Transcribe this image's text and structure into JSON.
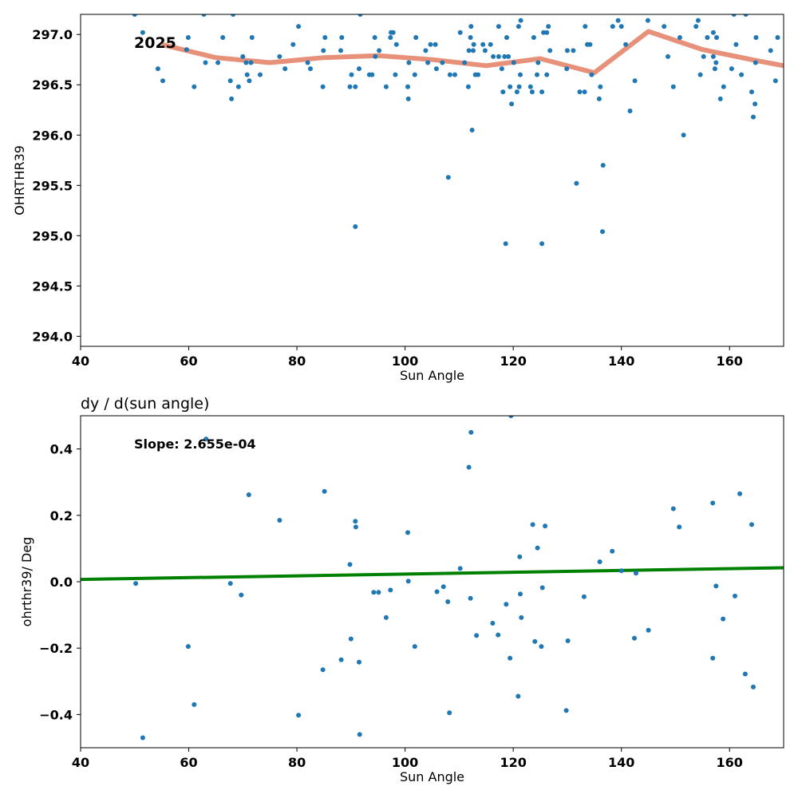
{
  "chart_data": [
    {
      "type": "scatter",
      "title": "",
      "xlabel": "Sun Angle",
      "ylabel": "OHRTHR39",
      "xlim": [
        40,
        170
      ],
      "ylim": [
        293.9,
        297.2
      ],
      "xticks": [
        40,
        60,
        80,
        100,
        120,
        140,
        160
      ],
      "yticks": [
        294.0,
        294.5,
        295.0,
        295.5,
        296.0,
        296.5,
        297.0
      ],
      "xtick_labels": [
        "40",
        "60",
        "80",
        "100",
        "120",
        "140",
        "160"
      ],
      "ytick_labels": [
        "294.0",
        "294.5",
        "295.0",
        "295.5",
        "296.0",
        "296.5",
        "297.0"
      ],
      "annotation": "2025",
      "grid": false,
      "colors": {
        "points": "#1f77b4",
        "trend": "#e8917a"
      },
      "series": [
        {
          "type": "scatter",
          "points": [
            [
              50,
              297.2
            ],
            [
              51.5,
              297.02
            ],
            [
              54.3,
              296.66
            ],
            [
              55.2,
              296.54
            ],
            [
              59.6,
              296.85
            ],
            [
              59.9,
              296.97
            ],
            [
              61,
              296.48
            ],
            [
              62.8,
              297.2
            ],
            [
              63.1,
              296.72
            ],
            [
              65.4,
              296.72
            ],
            [
              66.3,
              296.97
            ],
            [
              67.7,
              296.54
            ],
            [
              67.9,
              296.36
            ],
            [
              68.2,
              297.2
            ],
            [
              69.2,
              296.48
            ],
            [
              70,
              296.78
            ],
            [
              70.6,
              296.72
            ],
            [
              70.8,
              296.6
            ],
            [
              71.2,
              296.54
            ],
            [
              71.5,
              296.72
            ],
            [
              71.7,
              296.97
            ],
            [
              73.2,
              296.6
            ],
            [
              76.8,
              296.78
            ],
            [
              77.8,
              296.66
            ],
            [
              79.3,
              296.9
            ],
            [
              80.3,
              297.08
            ],
            [
              82,
              296.72
            ],
            [
              82.5,
              296.66
            ],
            [
              84.8,
              296.48
            ],
            [
              84.9,
              296.84
            ],
            [
              85.2,
              296.97
            ],
            [
              88.1,
              296.84
            ],
            [
              88.3,
              296.97
            ],
            [
              89.8,
              296.48
            ],
            [
              90.1,
              296.6
            ],
            [
              90.8,
              296.48
            ],
            [
              91.5,
              296.66
            ],
            [
              91.7,
              297.2
            ],
            [
              93.4,
              296.6
            ],
            [
              93.9,
              296.6
            ],
            [
              94.4,
              296.97
            ],
            [
              94.5,
              296.78
            ],
            [
              95.2,
              296.84
            ],
            [
              96.5,
              296.48
            ],
            [
              97.3,
              296.97
            ],
            [
              97.4,
              297.02
            ],
            [
              97.8,
              297.02
            ],
            [
              98.2,
              296.6
            ],
            [
              98.4,
              296.9
            ],
            [
              100.5,
              296.48
            ],
            [
              100.6,
              296.36
            ],
            [
              100.7,
              296.72
            ],
            [
              101.8,
              296.6
            ],
            [
              102,
              296.97
            ],
            [
              103.8,
              296.84
            ],
            [
              104.2,
              296.72
            ],
            [
              104.7,
              296.9
            ],
            [
              105.6,
              296.9
            ],
            [
              105.8,
              296.66
            ],
            [
              106.9,
              296.72
            ],
            [
              108.3,
              296.6
            ],
            [
              109.2,
              296.6
            ],
            [
              110.2,
              297.02
            ],
            [
              111,
              296.72
            ],
            [
              111.7,
              296.48
            ],
            [
              111.8,
              296.84
            ],
            [
              112.1,
              296.97
            ],
            [
              112.2,
              297.08
            ],
            [
              112.6,
              296.84
            ],
            [
              112.7,
              296.9
            ],
            [
              113,
              296.6
            ],
            [
              113.5,
              296.6
            ],
            [
              114.4,
              296.9
            ],
            [
              114.8,
              296.84
            ],
            [
              115.8,
              296.9
            ],
            [
              116.3,
              296.78
            ],
            [
              117.3,
              296.78
            ],
            [
              117.3,
              297.08
            ],
            [
              117.9,
              296.66
            ],
            [
              118.1,
              296.43
            ],
            [
              118.4,
              296.78
            ],
            [
              118.8,
              296.97
            ],
            [
              119.1,
              296.78
            ],
            [
              119.4,
              296.48
            ],
            [
              119.7,
              296.31
            ],
            [
              120.1,
              296.72
            ],
            [
              120.7,
              296.43
            ],
            [
              121,
              297.08
            ],
            [
              121.1,
              296.48
            ],
            [
              121.3,
              296.6
            ],
            [
              121.4,
              297.14
            ],
            [
              123.2,
              296.48
            ],
            [
              123.5,
              296.43
            ],
            [
              123.8,
              296.97
            ],
            [
              124.4,
              296.6
            ],
            [
              124.6,
              296.72
            ],
            [
              125.3,
              296.43
            ],
            [
              125.6,
              297.02
            ],
            [
              126.2,
              297.02
            ],
            [
              126.2,
              296.6
            ],
            [
              126.5,
              297.08
            ],
            [
              126.8,
              296.84
            ],
            [
              129.9,
              296.66
            ],
            [
              130,
              296.84
            ],
            [
              131.1,
              296.84
            ],
            [
              132.3,
              296.43
            ],
            [
              133.2,
              296.43
            ],
            [
              133.3,
              297.08
            ],
            [
              133.7,
              296.9
            ],
            [
              134.2,
              296.9
            ],
            [
              134.5,
              296.6
            ],
            [
              135.9,
              296.36
            ],
            [
              136.1,
              296.48
            ],
            [
              140.8,
              296.9
            ],
            [
              141.6,
              296.24
            ],
            [
              142.5,
              296.54
            ],
            [
              148.6,
              296.78
            ],
            [
              149.6,
              296.48
            ],
            [
              150.8,
              296.97
            ],
            [
              153.8,
              297.08
            ],
            [
              154.2,
              297.14
            ],
            [
              154.6,
              296.6
            ],
            [
              155.2,
              296.78
            ],
            [
              155.9,
              296.97
            ],
            [
              157,
              297.02
            ],
            [
              157,
              296.78
            ],
            [
              157.3,
              296.66
            ],
            [
              157.5,
              296.72
            ],
            [
              157.6,
              296.97
            ],
            [
              158.3,
              296.36
            ],
            [
              158.9,
              296.48
            ],
            [
              160.4,
              296.66
            ],
            [
              160.8,
              297.2
            ],
            [
              161.2,
              296.9
            ],
            [
              162.2,
              296.6
            ],
            [
              163,
              297.2
            ],
            [
              164.1,
              296.43
            ],
            [
              164.4,
              296.18
            ],
            [
              164.7,
              296.31
            ],
            [
              164.8,
              296.72
            ],
            [
              164.9,
              296.97
            ],
            [
              167.6,
              296.84
            ],
            [
              168.5,
              296.54
            ],
            [
              168.9,
              296.97
            ],
            [
              112.4,
              296.05
            ],
            [
              108,
              295.58
            ],
            [
              118.6,
              294.92
            ],
            [
              125.3,
              294.92
            ],
            [
              90.8,
              295.09
            ],
            [
              131.7,
              295.52
            ],
            [
              136.6,
              295.7
            ],
            [
              136.5,
              295.04
            ],
            [
              151.5,
              296
            ],
            [
              139.4,
              297.14
            ],
            [
              140,
              297.08
            ],
            [
              144.9,
              297.14
            ],
            [
              147.9,
              297.08
            ],
            [
              138.4,
              297.08
            ]
          ]
        },
        {
          "type": "line",
          "points": [
            [
              55,
              296.9
            ],
            [
              65,
              296.77
            ],
            [
              75,
              296.72
            ],
            [
              85,
              296.77
            ],
            [
              95,
              296.79
            ],
            [
              105,
              296.75
            ],
            [
              115,
              296.69
            ],
            [
              125,
              296.76
            ],
            [
              135,
              296.62
            ],
            [
              145,
              297.03
            ],
            [
              155,
              296.85
            ],
            [
              165,
              296.74
            ],
            [
              170,
              296.69
            ]
          ]
        }
      ]
    },
    {
      "type": "scatter",
      "title": "dy / d(sun angle)",
      "xlabel": "Sun Angle",
      "ylabel": "ohrthr39/ Deg",
      "xlim": [
        40,
        170
      ],
      "ylim": [
        -0.5,
        0.5
      ],
      "xticks": [
        40,
        60,
        80,
        100,
        120,
        140,
        160
      ],
      "yticks": [
        -0.4,
        -0.2,
        0.0,
        0.2,
        0.4
      ],
      "xtick_labels": [
        "40",
        "60",
        "80",
        "100",
        "120",
        "140",
        "160"
      ],
      "ytick_labels": [
        "−0.4",
        "−0.2",
        "0.0",
        "0.2",
        "0.4"
      ],
      "annotation": "Slope: 2.655e-04",
      "grid": false,
      "colors": {
        "points": "#1f77b4",
        "trend": "#008000"
      },
      "series": [
        {
          "type": "scatter",
          "points": [
            [
              50.2,
              -0.005
            ],
            [
              51.5,
              -0.47
            ],
            [
              59.9,
              -0.195
            ],
            [
              61,
              -0.37
            ],
            [
              63.2,
              0.43
            ],
            [
              67.7,
              -0.005
            ],
            [
              69.7,
              -0.04
            ],
            [
              71.1,
              0.262
            ],
            [
              76.8,
              0.185
            ],
            [
              80.3,
              -0.402
            ],
            [
              84.8,
              -0.265
            ],
            [
              85.1,
              0.272
            ],
            [
              88.2,
              -0.235
            ],
            [
              89.8,
              0.052
            ],
            [
              90,
              -0.172
            ],
            [
              90.8,
              0.182
            ],
            [
              90.9,
              0.165
            ],
            [
              91.5,
              -0.242
            ],
            [
              91.6,
              -0.46
            ],
            [
              94.2,
              -0.032
            ],
            [
              95.1,
              -0.032
            ],
            [
              96.5,
              -0.108
            ],
            [
              97.3,
              -0.025
            ],
            [
              100.5,
              0.148
            ],
            [
              100.6,
              0.002
            ],
            [
              101.8,
              -0.195
            ],
            [
              105.9,
              -0.03
            ],
            [
              107.1,
              -0.015
            ],
            [
              107.9,
              -0.06
            ],
            [
              108.2,
              -0.395
            ],
            [
              110.2,
              0.04
            ],
            [
              111.8,
              0.345
            ],
            [
              112.1,
              -0.05
            ],
            [
              112.2,
              0.45
            ],
            [
              113.2,
              -0.162
            ],
            [
              116.2,
              -0.125
            ],
            [
              117.2,
              -0.16
            ],
            [
              118.7,
              -0.068
            ],
            [
              119.4,
              -0.23
            ],
            [
              119.6,
              0.5
            ],
            [
              120.9,
              -0.345
            ],
            [
              121.2,
              0.075
            ],
            [
              121.3,
              -0.037
            ],
            [
              121.5,
              -0.108
            ],
            [
              123.6,
              0.172
            ],
            [
              124,
              -0.18
            ],
            [
              124.5,
              0.102
            ],
            [
              125.2,
              -0.195
            ],
            [
              125.4,
              -0.018
            ],
            [
              125.9,
              0.168
            ],
            [
              129.8,
              -0.388
            ],
            [
              130.1,
              -0.178
            ],
            [
              133.1,
              -0.045
            ],
            [
              136,
              0.06
            ],
            [
              138.3,
              0.092
            ],
            [
              140,
              0.033
            ],
            [
              142.4,
              -0.17
            ],
            [
              142.7,
              0.026
            ],
            [
              145,
              -0.146
            ],
            [
              149.6,
              0.22
            ],
            [
              150.7,
              0.165
            ],
            [
              156.9,
              -0.23
            ],
            [
              156.9,
              0.237
            ],
            [
              157.5,
              -0.013
            ],
            [
              158.8,
              -0.112
            ],
            [
              161,
              -0.043
            ],
            [
              161.9,
              0.265
            ],
            [
              162.9,
              -0.278
            ],
            [
              164.1,
              0.172
            ],
            [
              164.4,
              -0.317
            ]
          ]
        },
        {
          "type": "line",
          "points": [
            [
              40,
              0.007
            ],
            [
              170,
              0.042
            ]
          ]
        }
      ]
    }
  ]
}
